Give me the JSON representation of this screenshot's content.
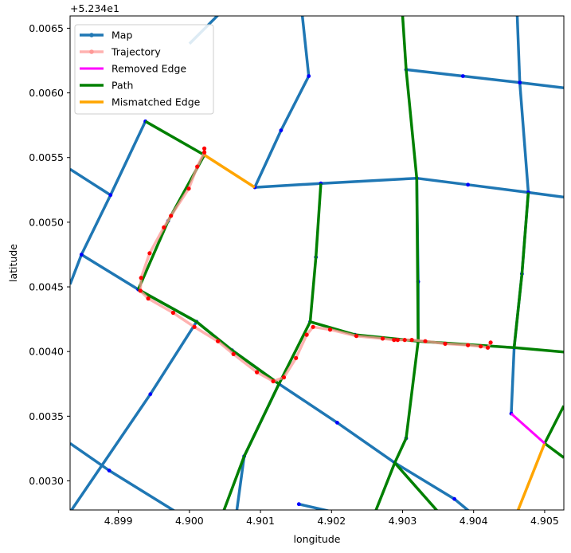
{
  "chart_data": {
    "type": "line",
    "title": "",
    "xlabel": "longitude",
    "ylabel": "latitude",
    "offset_text": "+5.234e1",
    "xlim": [
      4.89832,
      4.90527
    ],
    "ylim": [
      0.002775,
      0.006595
    ],
    "xticks": [
      4.899,
      4.9,
      4.901,
      4.902,
      4.903,
      4.904,
      4.905
    ],
    "xtick_labels": [
      "4.899",
      "4.900",
      "4.901",
      "4.902",
      "4.903",
      "4.904",
      "4.905"
    ],
    "yticks": [
      0.003,
      0.0035,
      0.004,
      0.0045,
      0.005,
      0.0055,
      0.006,
      0.0065
    ],
    "ytick_labels": [
      "0.0030",
      "0.0035",
      "0.0040",
      "0.0045",
      "0.0050",
      "0.0055",
      "0.0060",
      "0.0065"
    ],
    "grid": false,
    "legend_position": "top-left",
    "colors": {
      "map": "#1f77b4",
      "map_nodes": "#0000ff",
      "trajectory": "#ff9896",
      "trajectory_points": "#ff0000",
      "removed": "#ff00ff",
      "path": "#008000",
      "mismatched": "#ffa500"
    },
    "series": [
      {
        "name": "Map",
        "style": "map",
        "segments": [
          [
            [
              4.89832,
              0.00452
            ],
            [
              4.89848,
              0.00475
            ],
            [
              4.89928,
              0.00448
            ],
            [
              4.9001,
              0.00423
            ],
            [
              4.9006,
              0.00401
            ],
            [
              4.90126,
              0.00375
            ],
            [
              4.90208,
              0.00345
            ],
            [
              4.90289,
              0.00314
            ],
            [
              4.90373,
              0.00286
            ],
            [
              4.9043,
              0.0026
            ]
          ],
          [
            [
              4.89832,
              0.00541
            ],
            [
              4.89889,
              0.00521
            ]
          ],
          [
            [
              4.89848,
              0.00475
            ],
            [
              4.89889,
              0.00521
            ],
            [
              4.89938,
              0.00578
            ]
          ],
          [
            [
              4.9004,
              0.0066
            ],
            [
              4.9,
              0.00638
            ]
          ],
          [
            [
              4.89832,
              0.00329
            ],
            [
              4.89887,
              0.00308
            ],
            [
              4.8999,
              0.00273
            ]
          ],
          [
            [
              4.898,
              0.0025
            ],
            [
              4.89945,
              0.00367
            ],
            [
              4.9001,
              0.00423
            ]
          ],
          [
            [
              4.9006,
              0.0025
            ],
            [
              4.90077,
              0.00319
            ],
            [
              4.90126,
              0.00375
            ]
          ],
          [
            [
              4.90092,
              0.00527
            ],
            [
              4.90129,
              0.00571
            ],
            [
              4.90168,
              0.00613
            ]
          ],
          [
            [
              4.90092,
              0.00527
            ],
            [
              4.90185,
              0.0053
            ],
            [
              4.9032,
              0.00534
            ],
            [
              4.90392,
              0.00529
            ],
            [
              4.90477,
              0.00523
            ],
            [
              4.9056,
              0.00517
            ]
          ],
          [
            [
              4.90168,
              0.00613
            ],
            [
              4.90155,
              0.0068
            ]
          ],
          [
            [
              4.9032,
              0.00534
            ],
            [
              4.90322,
              0.00454
            ],
            [
              4.90322,
              0.00408
            ]
          ],
          [
            [
              4.90305,
              0.00618
            ],
            [
              4.90385,
              0.00613
            ],
            [
              4.90465,
              0.00608
            ],
            [
              4.9054,
              0.00603
            ]
          ],
          [
            [
              4.90465,
              0.00608
            ],
            [
              4.9046,
              0.0068
            ]
          ],
          [
            [
              4.90465,
              0.00608
            ],
            [
              4.90477,
              0.00523
            ],
            [
              4.90468,
              0.0046
            ],
            [
              4.90457,
              0.00403
            ],
            [
              4.90453,
              0.00352
            ]
          ],
          [
            [
              4.90154,
              0.00282
            ],
            [
              4.9025,
              0.0027
            ]
          ]
        ],
        "nodes": [
          [
            4.89848,
            0.00475
          ],
          [
            4.89889,
            0.00521
          ],
          [
            4.89938,
            0.00578
          ],
          [
            4.89928,
            0.00448
          ],
          [
            4.9001,
            0.00423
          ],
          [
            4.9006,
            0.00401
          ],
          [
            4.90126,
            0.00375
          ],
          [
            4.90208,
            0.00345
          ],
          [
            4.90289,
            0.00314
          ],
          [
            4.90373,
            0.00286
          ],
          [
            4.89945,
            0.00367
          ],
          [
            4.89887,
            0.00308
          ],
          [
            4.90077,
            0.00319
          ],
          [
            4.90092,
            0.00527
          ],
          [
            4.90129,
            0.00571
          ],
          [
            4.90168,
            0.00613
          ],
          [
            4.90185,
            0.0053
          ],
          [
            4.9032,
            0.00534
          ],
          [
            4.90392,
            0.00529
          ],
          [
            4.90477,
            0.00523
          ],
          [
            4.90305,
            0.00618
          ],
          [
            4.90385,
            0.00613
          ],
          [
            4.90465,
            0.00608
          ],
          [
            4.90322,
            0.00454
          ],
          [
            4.90468,
            0.0046
          ],
          [
            4.90457,
            0.00403
          ],
          [
            4.90453,
            0.00352
          ],
          [
            4.90154,
            0.00282
          ],
          [
            4.8997,
            0.00501
          ],
          [
            4.90021,
            0.00552
          ],
          [
            4.90178,
            0.00473
          ],
          [
            4.9017,
            0.00423
          ],
          [
            4.90233,
            0.00413
          ],
          [
            4.90322,
            0.00408
          ],
          [
            4.90305,
            0.00333
          ]
        ]
      },
      {
        "name": "Trajectory",
        "style": "trajectory",
        "points": [
          [
            4.90021,
            0.00557
          ],
          [
            4.90021,
            0.00554
          ],
          [
            4.90011,
            0.00543
          ],
          [
            4.89999,
            0.00526
          ],
          [
            4.89974,
            0.00505
          ],
          [
            4.89964,
            0.00496
          ],
          [
            4.89944,
            0.00476
          ],
          [
            4.89932,
            0.00457
          ],
          [
            4.89931,
            0.00447
          ],
          [
            4.89942,
            0.00441
          ],
          [
            4.89977,
            0.0043
          ],
          [
            4.90007,
            0.00419
          ],
          [
            4.9004,
            0.00408
          ],
          [
            4.90062,
            0.00398
          ],
          [
            4.90095,
            0.00384
          ],
          [
            4.90118,
            0.00377
          ],
          [
            4.90133,
            0.0038
          ],
          [
            4.9015,
            0.00395
          ],
          [
            4.90165,
            0.00413
          ],
          [
            4.90174,
            0.00419
          ],
          [
            4.90198,
            0.00417
          ],
          [
            4.90235,
            0.00412
          ],
          [
            4.90272,
            0.0041
          ],
          [
            4.90288,
            0.00409
          ],
          [
            4.90293,
            0.00409
          ],
          [
            4.90303,
            0.00409
          ],
          [
            4.90313,
            0.00409
          ],
          [
            4.90332,
            0.00408
          ],
          [
            4.9036,
            0.00406
          ],
          [
            4.90392,
            0.00405
          ],
          [
            4.9041,
            0.00404
          ],
          [
            4.9042,
            0.00403
          ],
          [
            4.90424,
            0.00407
          ]
        ]
      },
      {
        "name": "Removed Edge",
        "style": "removed",
        "segments": [
          [
            [
              4.90453,
              0.00352
            ],
            [
              4.905,
              0.00329
            ]
          ]
        ]
      },
      {
        "name": "Path",
        "style": "path",
        "segments": [
          [
            [
              4.89938,
              0.00578
            ],
            [
              4.90021,
              0.00552
            ]
          ],
          [
            [
              4.90021,
              0.00552
            ],
            [
              4.8997,
              0.00501
            ],
            [
              4.89928,
              0.00448
            ]
          ],
          [
            [
              4.89928,
              0.00448
            ],
            [
              4.9001,
              0.00423
            ],
            [
              4.9006,
              0.00401
            ],
            [
              4.90126,
              0.00375
            ]
          ],
          [
            [
              4.90126,
              0.00375
            ],
            [
              4.9017,
              0.00423
            ],
            [
              4.90178,
              0.00473
            ],
            [
              4.90185,
              0.0053
            ]
          ],
          [
            [
              4.9017,
              0.00423
            ],
            [
              4.90233,
              0.00413
            ],
            [
              4.90322,
              0.00408
            ],
            [
              4.90457,
              0.00403
            ],
            [
              4.9054,
              0.00399
            ]
          ],
          [
            [
              4.90305,
              0.00618
            ],
            [
              4.9032,
              0.00534
            ],
            [
              4.90322,
              0.00408
            ],
            [
              4.90305,
              0.00333
            ],
            [
              4.90289,
              0.00314
            ],
            [
              4.9025,
              0.0026
            ]
          ],
          [
            [
              4.90289,
              0.00314
            ],
            [
              4.904,
              0.00245
            ]
          ],
          [
            [
              4.90126,
              0.00375
            ],
            [
              4.90077,
              0.00319
            ],
            [
              4.9003,
              0.0025
            ]
          ],
          [
            [
              4.90457,
              0.00403
            ],
            [
              4.90468,
              0.0046
            ],
            [
              4.90477,
              0.00523
            ]
          ],
          [
            [
              4.903,
              0.0066
            ],
            [
              4.90305,
              0.00618
            ]
          ],
          [
            [
              4.90527,
              0.00358
            ],
            [
              4.905,
              0.00329
            ],
            [
              4.90527,
              0.00318
            ]
          ]
        ]
      },
      {
        "name": "Mismatched Edge",
        "style": "mismatched",
        "segments": [
          [
            [
              4.90021,
              0.00552
            ],
            [
              4.90092,
              0.00527
            ]
          ],
          [
            [
              4.905,
              0.00329
            ],
            [
              4.9045,
              0.0026
            ]
          ]
        ]
      }
    ],
    "legend": [
      {
        "label": "Map",
        "style": "map"
      },
      {
        "label": "Trajectory",
        "style": "trajectory"
      },
      {
        "label": "Removed Edge",
        "style": "removed"
      },
      {
        "label": "Path",
        "style": "path"
      },
      {
        "label": "Mismatched Edge",
        "style": "mismatched"
      }
    ]
  }
}
